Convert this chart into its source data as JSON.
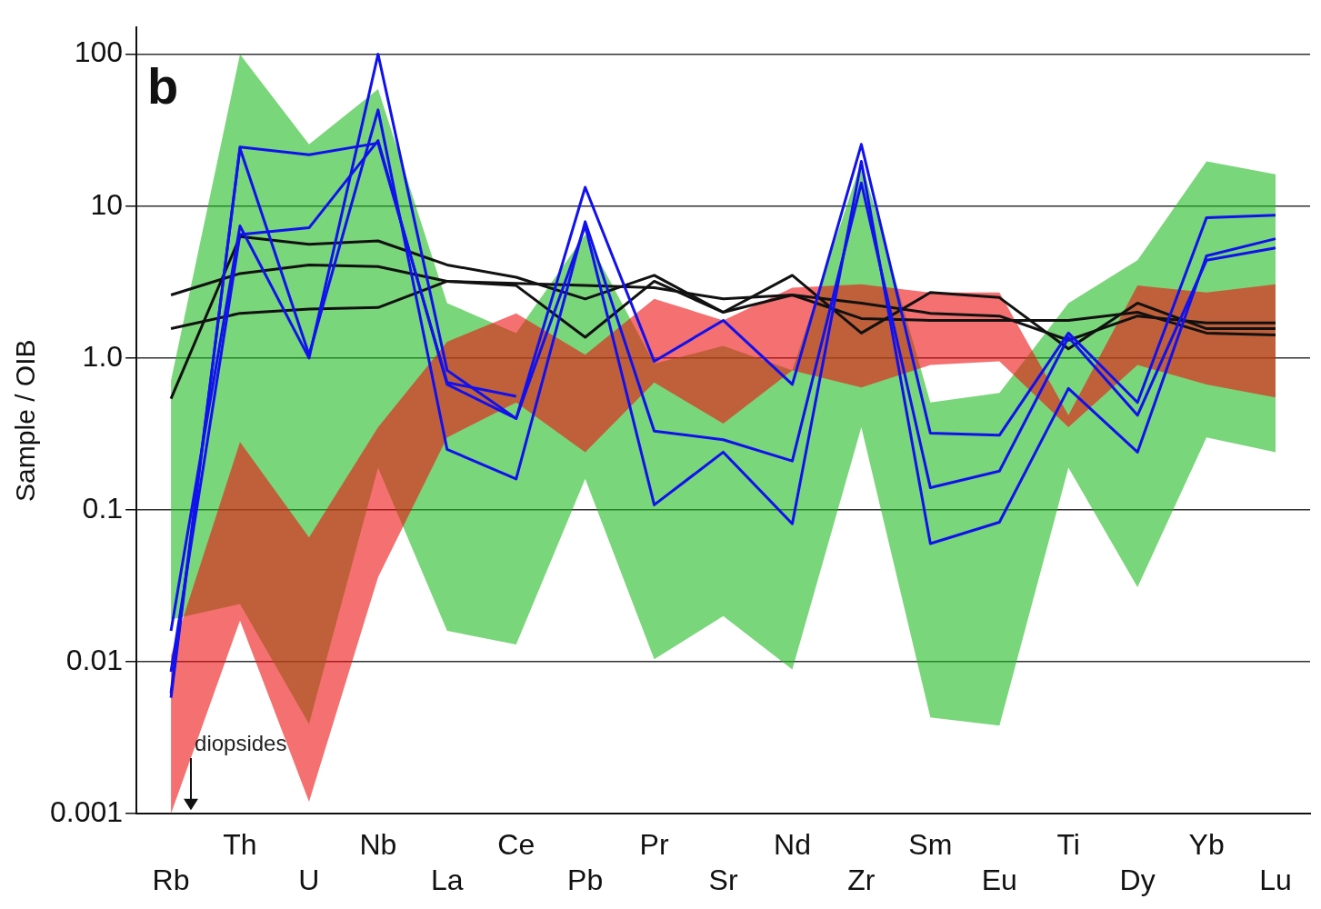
{
  "chart_data": {
    "type": "line",
    "ylabel": "Sample / OIB",
    "annotations": [
      "b",
      "diopsides"
    ],
    "categories": [
      "Rb",
      "Th",
      "U",
      "Nb",
      "La",
      "Ce",
      "Pb",
      "Pr",
      "Sr",
      "Nd",
      "Zr",
      "Sm",
      "Eu",
      "Ti",
      "Dy",
      "Yb",
      "Lu"
    ],
    "log": "y",
    "ylim": [
      0.001,
      150
    ],
    "yticks": [
      0.001,
      0.01,
      0.1,
      {
        "value": 1,
        "label": "1.0"
      },
      10,
      100
    ],
    "grid": "y",
    "legend": false,
    "marker": "none",
    "line_style": "solid",
    "series": [
      {
        "type": "area",
        "color": "#22bb22",
        "values": [
          null,
          null,
          null,
          null,
          null,
          null,
          null,
          null,
          null,
          null,
          null,
          null,
          null,
          null,
          null,
          null,
          null
        ],
        "upper": [
          0.71,
          100,
          25.5,
          59,
          2.3,
          1.46,
          6.5,
          0.92,
          1.2,
          0.83,
          19.7,
          0.51,
          0.59,
          2.3,
          4.4,
          19.7,
          16.2
        ],
        "lower": [
          0.019,
          0.024,
          0.0039,
          0.19,
          0.016,
          0.013,
          0.16,
          0.0104,
          0.02,
          0.0089,
          0.35,
          0.0043,
          0.0038,
          0.19,
          0.031,
          0.3,
          0.24
        ]
      },
      {
        "type": "area",
        "color": "#ee1111",
        "values": [
          null,
          null,
          null,
          null,
          null,
          null,
          null,
          null,
          null,
          null,
          null,
          null,
          null,
          null,
          null,
          null,
          null
        ],
        "upper": [
          0.011,
          0.28,
          0.066,
          0.35,
          1.28,
          1.97,
          1.05,
          2.45,
          1.77,
          2.9,
          3.06,
          2.7,
          2.7,
          0.42,
          3.0,
          2.7,
          3.06
        ],
        "lower": [
          0.001,
          0.0187,
          0.0012,
          0.036,
          0.3,
          0.51,
          0.24,
          0.69,
          0.37,
          0.83,
          0.64,
          0.9,
          0.95,
          0.35,
          0.9,
          0.67,
          0.55
        ]
      },
      {
        "color": "#1111ee",
        "values": [
          0.016,
          7.4,
          1.0,
          100,
          0.83,
          0.4,
          13.3,
          0.95,
          1.77,
          0.67,
          25.5,
          0.32,
          0.31,
          1.46,
          0.51,
          8.4,
          8.7
        ]
      },
      {
        "color": "#1111ee",
        "values": [
          0.0058,
          24.5,
          21.8,
          26,
          0.69,
          0.56,
          null,
          null,
          null,
          null,
          null,
          null,
          null,
          null,
          null,
          null,
          null
        ]
      },
      {
        "color": "#1111ee",
        "values": [
          0.0062,
          24,
          1.05,
          43,
          0.25,
          0.16,
          7.9,
          0.33,
          0.29,
          0.21,
          14.2,
          0.14,
          0.18,
          1.37,
          0.42,
          4.4,
          5.3
        ]
      },
      {
        "color": "#1111ee",
        "values": [
          0.0086,
          6.5,
          7.2,
          27,
          0.67,
          0.4,
          7.4,
          0.108,
          0.24,
          0.081,
          19.7,
          0.06,
          0.083,
          0.63,
          0.24,
          4.7,
          6.1
        ]
      },
      {
        "color": "#111111",
        "values": [
          0.54,
          6.3,
          5.6,
          5.9,
          4.1,
          3.4,
          2.45,
          3.5,
          2.0,
          3.5,
          1.46,
          2.7,
          2.5,
          1.15,
          2.3,
          1.56,
          1.56
        ]
      },
      {
        "color": "#111111",
        "values": [
          2.6,
          3.6,
          4.1,
          4.0,
          3.2,
          3.1,
          3.0,
          2.9,
          2.45,
          2.6,
          2.3,
          1.97,
          1.89,
          1.31,
          1.89,
          1.7,
          1.7
        ]
      },
      {
        "color": "#111111",
        "values": [
          1.56,
          1.97,
          2.1,
          2.15,
          3.2,
          3.0,
          1.37,
          3.2,
          2.0,
          2.6,
          1.82,
          1.77,
          1.77,
          1.77,
          2.0,
          1.46,
          1.42
        ]
      }
    ]
  }
}
